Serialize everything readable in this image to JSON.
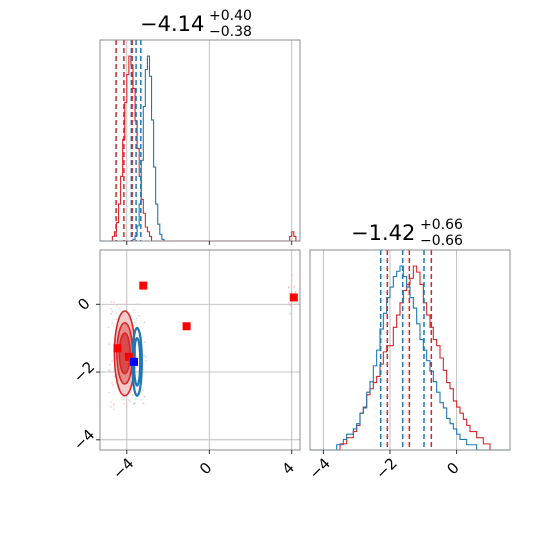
{
  "chart_data": {
    "type": "corner",
    "colors": {
      "red": "#d62728",
      "blue": "#1f77b4",
      "grid": "#b0b0b0",
      "axes": "#808080"
    },
    "parameter_1": {
      "median": -4.14,
      "plus": 0.4,
      "minus": 0.38,
      "title_main": "−4.14",
      "title_sup": "+0.40",
      "title_sub": "−0.38",
      "xlim": [
        -5.3,
        4.4
      ],
      "ticks": [
        -4,
        0,
        4
      ],
      "tick_labels": [
        "−4",
        "0",
        "4"
      ],
      "red_quantiles": [
        -4.52,
        -4.14,
        -3.74
      ],
      "blue_quantiles": [
        -3.78,
        -3.55,
        -3.32
      ]
    },
    "parameter_2": {
      "median": -1.42,
      "plus": 0.66,
      "minus": 0.66,
      "title_main": "−1.42",
      "title_sup": "+0.66",
      "title_sub": "−0.66",
      "xlim": [
        -4.4,
        1.6
      ],
      "ticks": [
        -4,
        -2,
        0
      ],
      "tick_labels": [
        "−4",
        "−2",
        "0"
      ],
      "red_quantiles": [
        -2.08,
        -1.42,
        -0.76
      ],
      "blue_quantiles": [
        -2.28,
        -1.62,
        -0.98
      ]
    },
    "scatter_ylim": [
      -4.3,
      1.6
    ],
    "scatter_ticks": [
      -4,
      -2,
      0
    ],
    "scatter_tick_labels": [
      "−4",
      "−2",
      "0"
    ],
    "hist1_red": {
      "edges_start": -5.3,
      "bin": 0.1,
      "counts": [
        0,
        0,
        0,
        0,
        0,
        0,
        1,
        2,
        4,
        8,
        14,
        22,
        30,
        36,
        40,
        38,
        33,
        26,
        20,
        14,
        9,
        6,
        3,
        2,
        1,
        0,
        0,
        0,
        0,
        0,
        0,
        0,
        0,
        0,
        0,
        0,
        0,
        0,
        0,
        0,
        0,
        0,
        0,
        0,
        0,
        0,
        0,
        0,
        0,
        0,
        0,
        0,
        0,
        0,
        0,
        0,
        0,
        0,
        0,
        0,
        0,
        0,
        0,
        0,
        0,
        0,
        0,
        0,
        0,
        0,
        0,
        0,
        0,
        0,
        0,
        0,
        0,
        0,
        0,
        0,
        0,
        0,
        0,
        0,
        0,
        0,
        0,
        0,
        0,
        0,
        0,
        0,
        1,
        2,
        1,
        0,
        0
      ]
    },
    "hist1_blue": {
      "edges_start": -5.3,
      "bin": 0.1,
      "counts": [
        0,
        0,
        0,
        0,
        0,
        0,
        0,
        0,
        0,
        0,
        0,
        0,
        0,
        0,
        0,
        0,
        1,
        3,
        9,
        22,
        48,
        80,
        102,
        110,
        98,
        72,
        44,
        22,
        10,
        4,
        1,
        0
      ]
    },
    "hist2_red": {
      "edges_start": -4.4,
      "bin": 0.1,
      "counts": [
        0,
        0,
        0,
        0,
        0,
        0,
        0,
        0,
        0,
        1,
        1,
        2,
        2,
        3,
        4,
        6,
        7,
        9,
        10,
        11,
        12,
        14,
        16,
        17,
        17,
        20,
        22,
        24,
        26,
        27,
        28,
        30,
        29,
        27,
        24,
        22,
        20,
        18,
        17,
        15,
        13,
        11,
        10,
        8,
        7,
        6,
        5,
        4,
        3,
        3,
        2,
        2,
        1,
        1,
        0,
        0,
        0,
        0,
        0,
        0
      ]
    },
    "hist2_blue": {
      "edges_start": -4.4,
      "bin": 0.1,
      "counts": [
        0,
        0,
        0,
        0,
        0,
        0,
        0,
        0,
        1,
        1,
        2,
        3,
        3,
        4,
        5,
        7,
        8,
        11,
        13,
        16,
        19,
        23,
        26,
        29,
        31,
        33,
        34,
        35,
        33,
        31,
        29,
        27,
        24,
        21,
        19,
        17,
        15,
        13,
        11,
        9,
        8,
        6,
        5,
        4,
        3,
        2,
        2,
        1,
        1,
        1,
        0,
        0,
        0,
        0,
        0,
        0,
        0,
        0,
        0,
        0
      ]
    },
    "red_markers": [
      {
        "x": -3.2,
        "y": 0.55
      },
      {
        "x": -1.1,
        "y": -0.65
      },
      {
        "x": -4.45,
        "y": -1.3
      },
      {
        "x": 4.1,
        "y": 0.2
      },
      {
        "x": -3.9,
        "y": -1.55
      }
    ],
    "blue_markers": [
      {
        "x": -3.65,
        "y": -1.7
      }
    ],
    "red_contours": [
      {
        "cx": -4.1,
        "cy": -1.45,
        "rx": 0.5,
        "ry": 1.25
      },
      {
        "cx": -4.1,
        "cy": -1.45,
        "rx": 0.38,
        "ry": 0.9
      },
      {
        "cx": -4.1,
        "cy": -1.45,
        "rx": 0.26,
        "ry": 0.6
      }
    ],
    "blue_contours": [
      {
        "cx": -3.5,
        "cy": -1.7,
        "rx": 0.23,
        "ry": 1.0
      },
      {
        "cx": -3.5,
        "cy": -1.7,
        "rx": 0.15,
        "ry": 0.7
      }
    ]
  }
}
